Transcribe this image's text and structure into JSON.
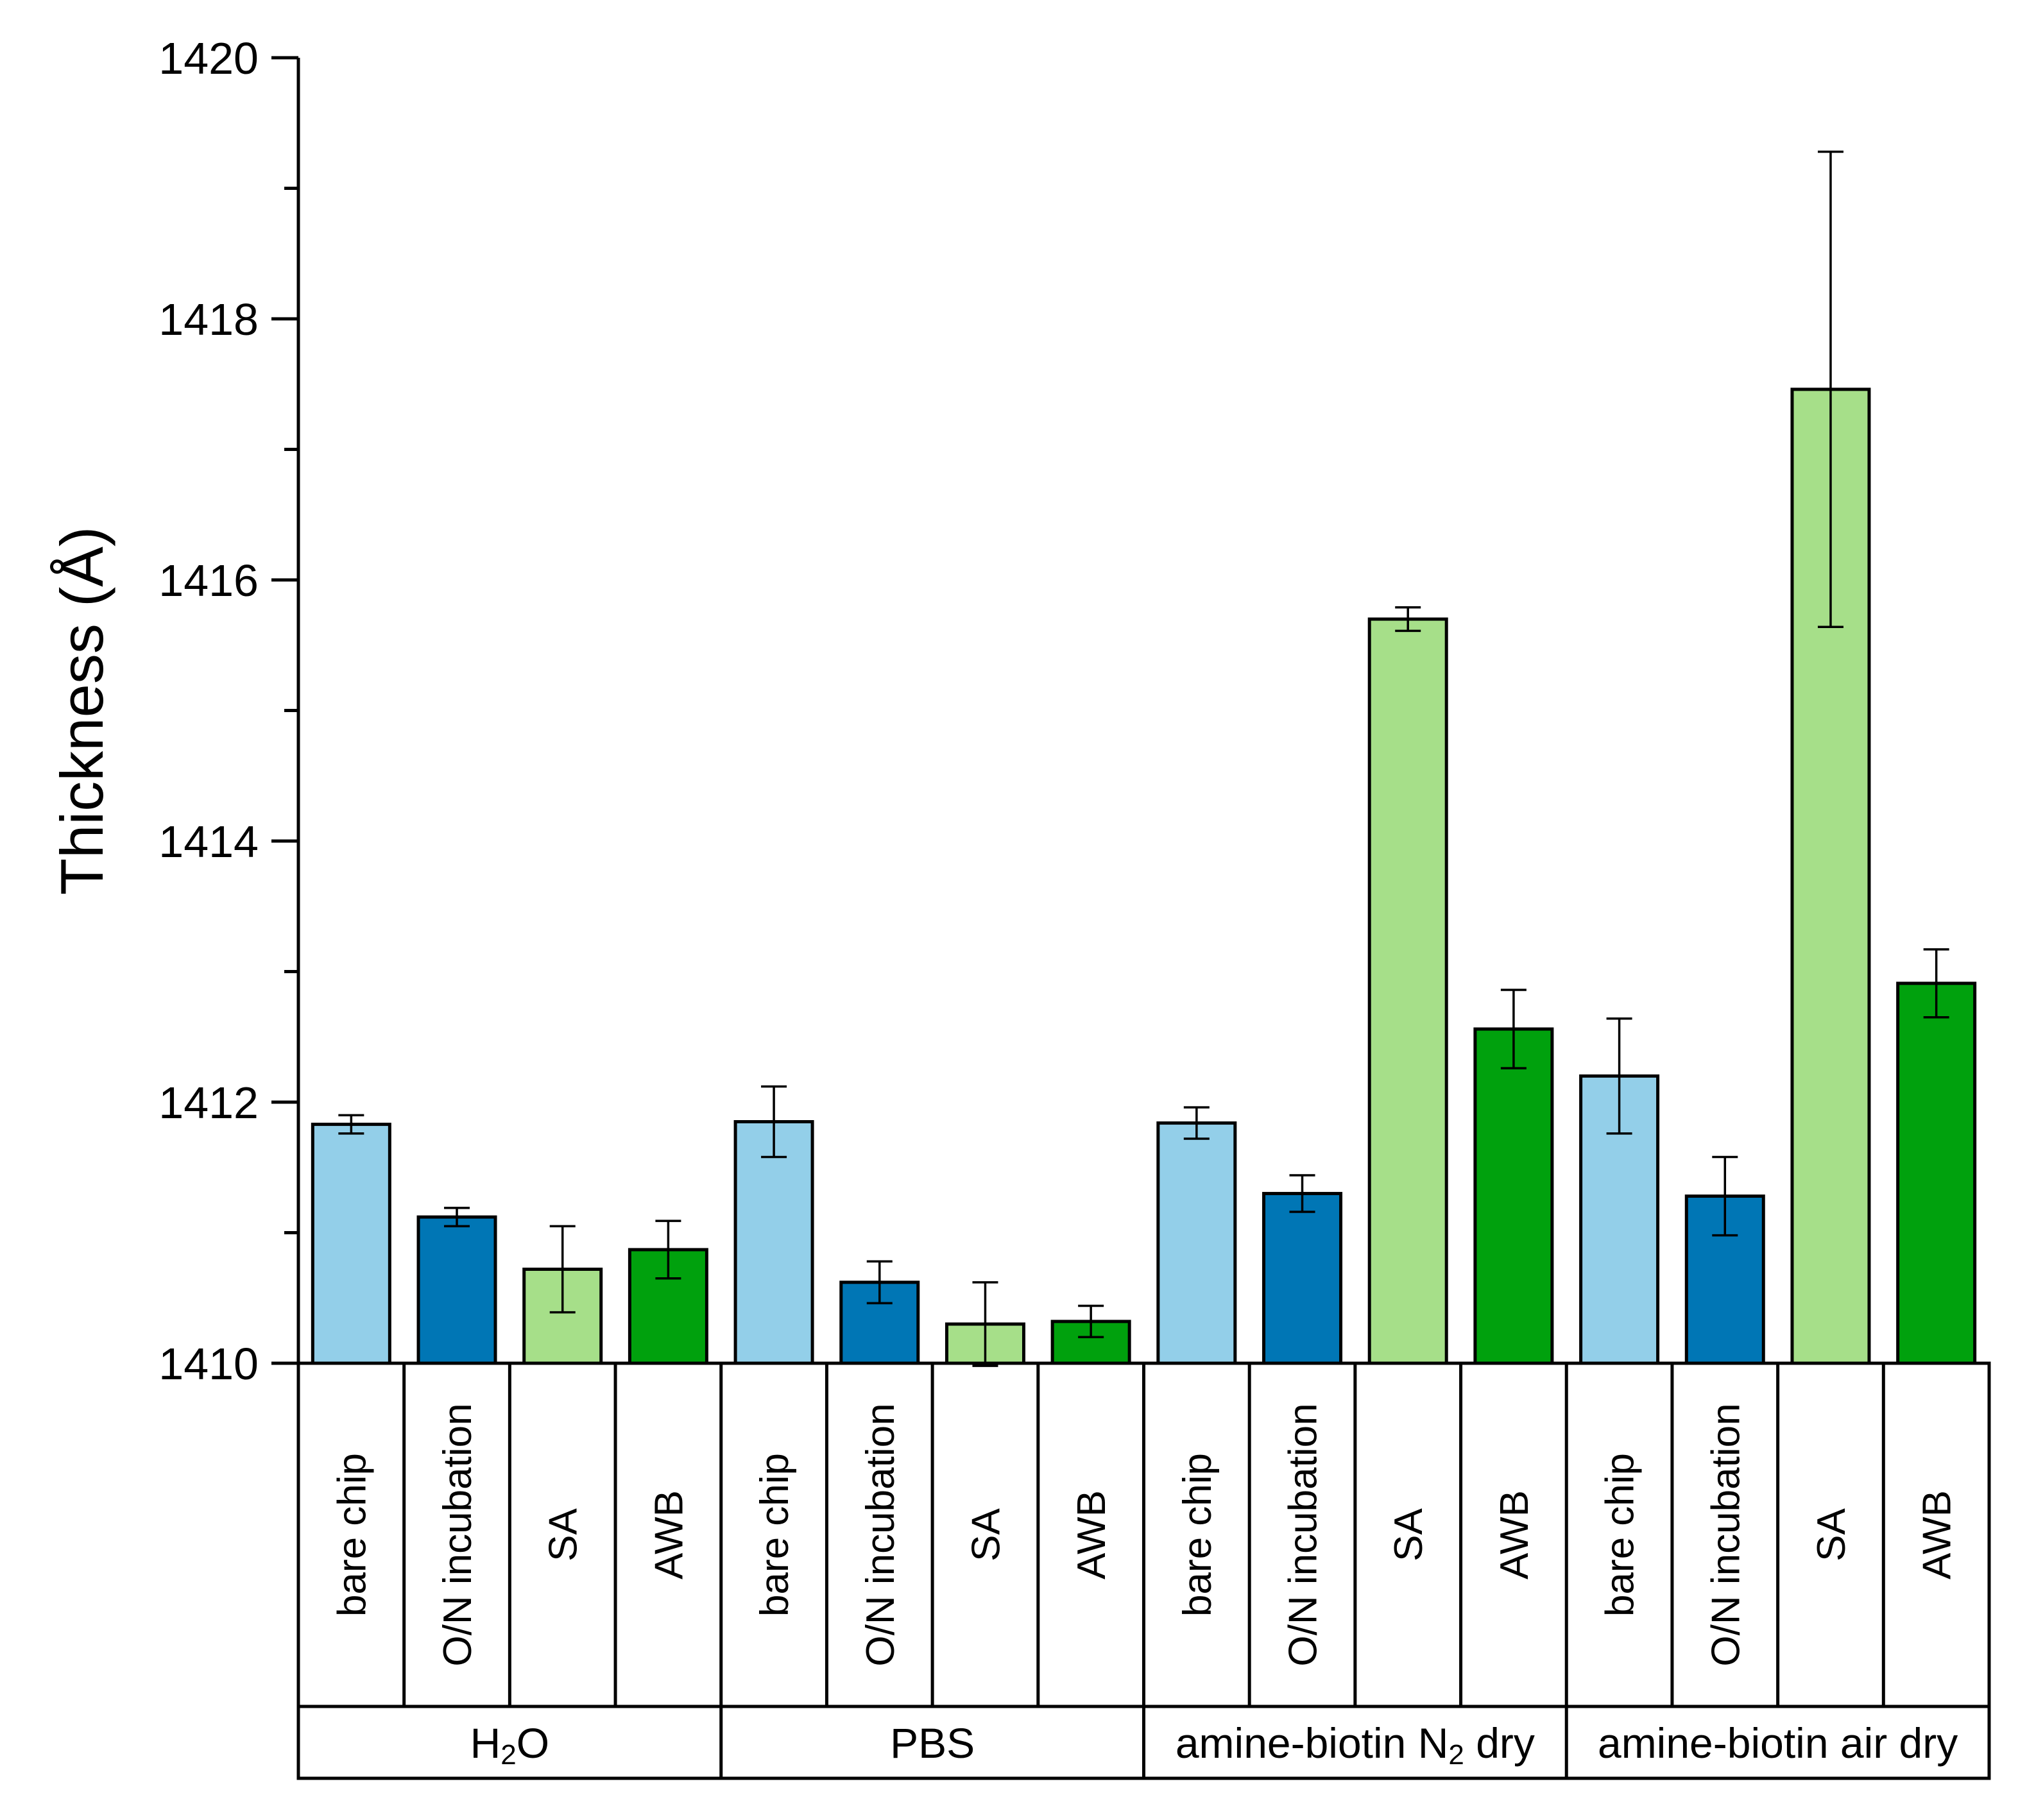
{
  "chart_data": {
    "type": "bar",
    "ylabel": "Thickness (Å)",
    "ylim": [
      1410,
      1420
    ],
    "yticks": [
      1410,
      1412,
      1414,
      1416,
      1418,
      1420
    ],
    "yminor_step": 1,
    "grid": false,
    "palette": {
      "bare chip": "#93cfe9",
      "O/N incubation": "#0076b5",
      "SA": "#a6df89",
      "AWB": "#00a10d"
    },
    "groups": [
      {
        "name": "H2O",
        "label_main": "H",
        "label_sub": "2",
        "label_tail": "O",
        "categories": [
          "bare chip",
          "O/N incubation",
          "SA",
          "AWB"
        ],
        "values": [
          1411.83,
          1411.12,
          1410.72,
          1410.87
        ],
        "errors": [
          0.07,
          0.07,
          0.33,
          0.22
        ]
      },
      {
        "name": "PBS",
        "label_main": "PBS",
        "label_sub": "",
        "label_tail": "",
        "categories": [
          "bare chip",
          "O/N incubation",
          "SA",
          "AWB"
        ],
        "values": [
          1411.85,
          1410.62,
          1410.3,
          1410.32
        ],
        "errors": [
          0.27,
          0.16,
          0.32,
          0.12
        ]
      },
      {
        "name": "amine-biotin N2 dry",
        "label_main": "amine-biotin N",
        "label_sub": "2",
        "label_tail": " dry",
        "categories": [
          "bare chip",
          "O/N incubation",
          "SA",
          "AWB"
        ],
        "values": [
          1411.84,
          1411.3,
          1415.7,
          1412.56
        ],
        "errors": [
          0.12,
          0.14,
          0.09,
          0.3
        ]
      },
      {
        "name": "amine-biotin air dry",
        "label_main": "amine-biotin air dry",
        "label_sub": "",
        "label_tail": "",
        "categories": [
          "bare chip",
          "O/N incubation",
          "SA",
          "AWB"
        ],
        "values": [
          1412.2,
          1411.28,
          1417.46,
          1412.91
        ],
        "errors": [
          0.44,
          0.3,
          1.82,
          0.26
        ]
      }
    ]
  }
}
